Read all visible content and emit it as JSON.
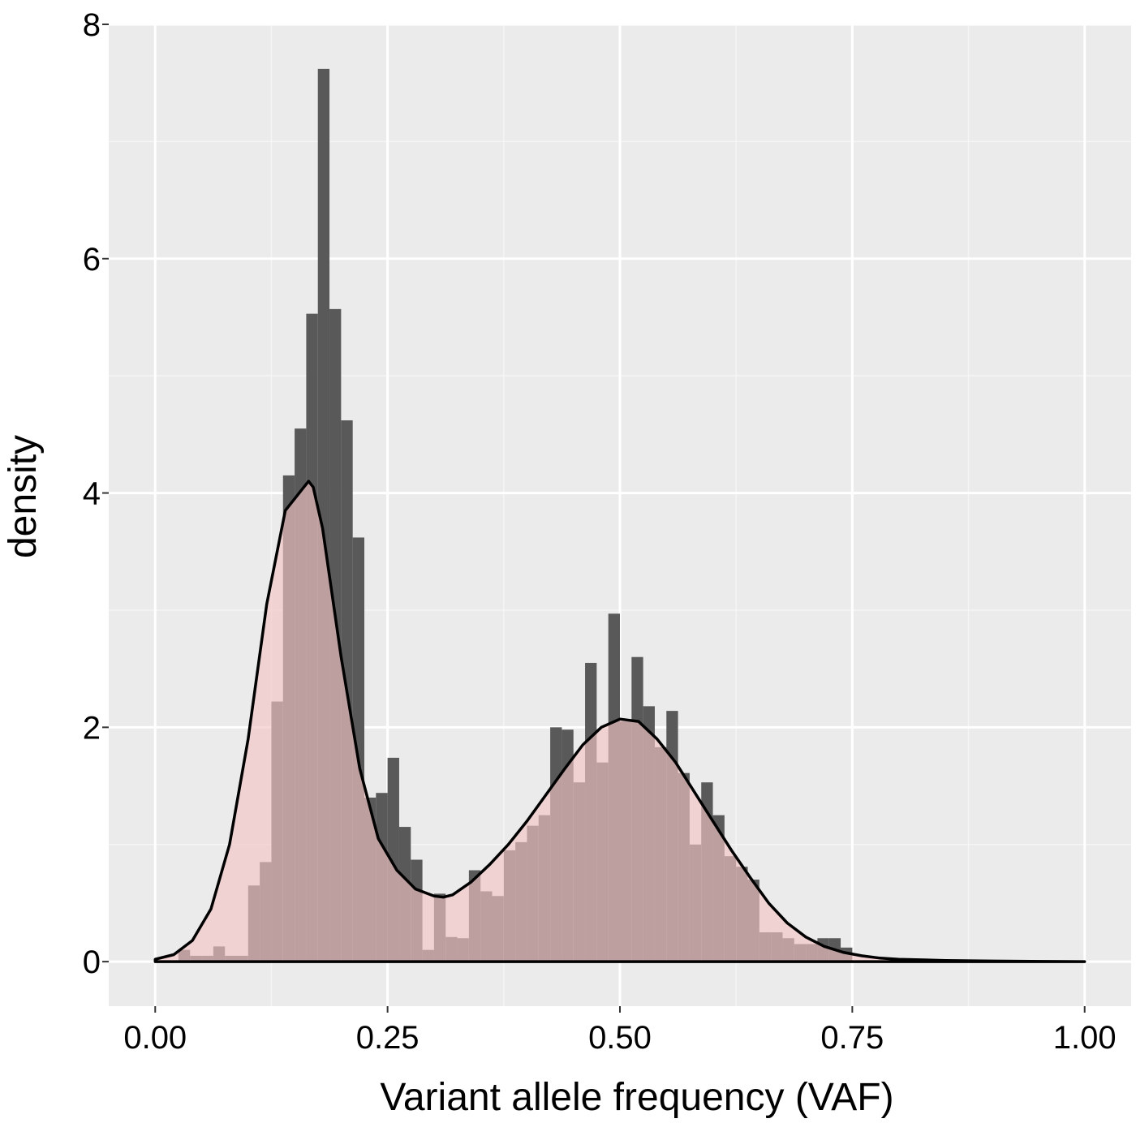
{
  "chart_data": {
    "type": "histogram",
    "xlabel": "Variant allele frequency (VAF)",
    "ylabel": "density",
    "xlim": [
      -0.05,
      1.05
    ],
    "ylim": [
      -0.38,
      8.0
    ],
    "x_ticks": [
      0.0,
      0.25,
      0.5,
      0.75,
      1.0
    ],
    "x_tick_labels": [
      "0.00",
      "0.25",
      "0.50",
      "0.75",
      "1.00"
    ],
    "y_ticks": [
      0,
      2,
      4,
      6,
      8
    ],
    "y_tick_labels": [
      "0",
      "2",
      "4",
      "6",
      "8"
    ],
    "grid": true,
    "legend": "none",
    "bin_width": 0.0125,
    "histogram": {
      "bin_start": [
        0.025,
        0.0375,
        0.05,
        0.0625,
        0.075,
        0.0875,
        0.1,
        0.1125,
        0.125,
        0.1375,
        0.15,
        0.1625,
        0.175,
        0.1875,
        0.2,
        0.2125,
        0.225,
        0.2375,
        0.25,
        0.2625,
        0.275,
        0.2875,
        0.3,
        0.3125,
        0.325,
        0.3375,
        0.35,
        0.3625,
        0.375,
        0.3875,
        0.4,
        0.4125,
        0.425,
        0.4375,
        0.45,
        0.4625,
        0.475,
        0.4875,
        0.5,
        0.5125,
        0.525,
        0.5375,
        0.55,
        0.5625,
        0.575,
        0.5875,
        0.6,
        0.6125,
        0.625,
        0.6375,
        0.65,
        0.6625,
        0.675,
        0.6875,
        0.7,
        0.7125,
        0.725,
        0.7375
      ],
      "density": [
        0.1,
        0.05,
        0.05,
        0.13,
        0.05,
        0.05,
        0.65,
        0.85,
        2.22,
        4.15,
        4.55,
        5.53,
        7.62,
        5.57,
        4.62,
        3.62,
        1.4,
        1.44,
        1.74,
        1.15,
        0.87,
        0.1,
        0.58,
        0.21,
        0.2,
        0.78,
        0.6,
        0.56,
        0.95,
        1.02,
        1.16,
        1.25,
        2.0,
        1.98,
        1.53,
        2.55,
        1.7,
        2.97,
        2.05,
        2.6,
        2.18,
        1.83,
        2.14,
        1.61,
        1.0,
        1.53,
        1.25,
        0.9,
        0.81,
        0.7,
        0.25,
        0.25,
        0.2,
        0.15,
        0.15,
        0.2,
        0.2,
        0.12
      ]
    },
    "density_curve": {
      "x": [
        0.0,
        0.02,
        0.04,
        0.06,
        0.08,
        0.1,
        0.12,
        0.14,
        0.16,
        0.165,
        0.17,
        0.18,
        0.2,
        0.22,
        0.24,
        0.26,
        0.28,
        0.3,
        0.31,
        0.32,
        0.34,
        0.36,
        0.38,
        0.4,
        0.42,
        0.44,
        0.46,
        0.48,
        0.5,
        0.52,
        0.54,
        0.56,
        0.58,
        0.6,
        0.62,
        0.64,
        0.66,
        0.68,
        0.7,
        0.72,
        0.74,
        0.76,
        0.78,
        0.8,
        0.85,
        0.9,
        1.0
      ],
      "y": [
        0.02,
        0.06,
        0.18,
        0.45,
        1.0,
        1.9,
        3.05,
        3.85,
        4.05,
        4.1,
        4.05,
        3.7,
        2.6,
        1.65,
        1.05,
        0.78,
        0.62,
        0.56,
        0.55,
        0.57,
        0.68,
        0.83,
        1.0,
        1.2,
        1.42,
        1.64,
        1.85,
        2.0,
        2.07,
        2.05,
        1.9,
        1.7,
        1.45,
        1.2,
        0.95,
        0.72,
        0.5,
        0.33,
        0.21,
        0.13,
        0.08,
        0.05,
        0.03,
        0.02,
        0.01,
        0.005,
        0.0
      ]
    },
    "colors": {
      "panel_background": "#ebebeb",
      "grid_major": "#ffffff",
      "grid_minor": "#f5f5f5",
      "histogram_bars": "#595959",
      "density_fill": "#f2c4c4",
      "density_fill_opacity": 0.65,
      "density_line": "#000000"
    }
  }
}
